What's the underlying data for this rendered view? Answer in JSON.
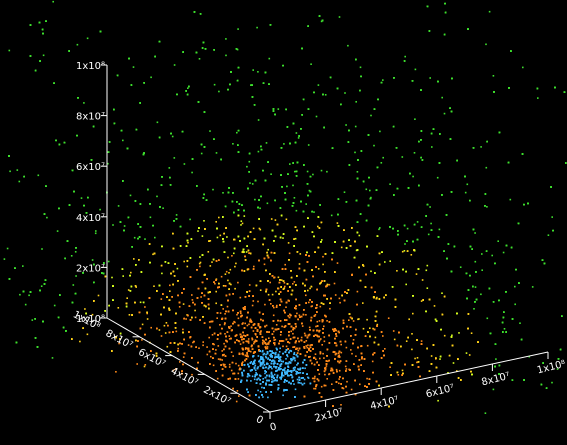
{
  "chart_data": {
    "type": "scatter",
    "title": "",
    "xlabel": "",
    "ylabel": "",
    "zlabel": "",
    "grid": false,
    "legend": "none",
    "background": "#000000",
    "x_ticks": [
      "0",
      "2x10⁷",
      "4x10⁷",
      "6x10⁷",
      "8x10⁷",
      "1x10⁸"
    ],
    "y_ticks": [
      "0",
      "2x10⁷",
      "4x10⁷",
      "6x10⁷",
      "8x10⁷",
      "1x10⁸"
    ],
    "z_ticks": [
      "1x10⁸",
      "8x10⁷",
      "6x10⁷",
      "4x10⁷",
      "2x10⁷",
      "1x10⁸"
    ],
    "xlim": [
      0,
      100000000
    ],
    "ylim": [
      0,
      100000000
    ],
    "zlim": [
      0,
      100000000
    ],
    "point_colors": [
      "#3fb8ff",
      "#ff8a1a",
      "#ffd21a",
      "#d8ff20",
      "#3ee02e"
    ],
    "distribution": "dense core near origin (blue), surrounded by orange, yellow and a wide green halo spreading to the top of the z axis"
  }
}
